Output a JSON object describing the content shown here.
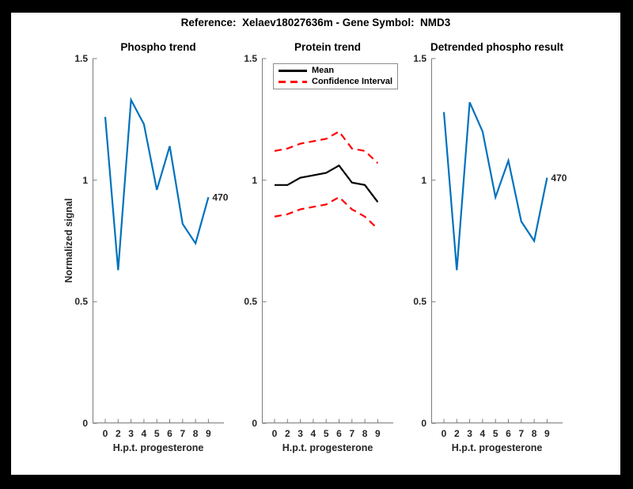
{
  "figure": {
    "title": "Reference:  Xelaev18027636m - Gene Symbol:  NMD3",
    "border_color": "#000000",
    "background": "#ffffff"
  },
  "axes": {
    "xlabel": "H.p.t. progesterone",
    "ylabel": "Normalized signal",
    "x_tick_labels": [
      "0",
      "2",
      "3",
      "4",
      "5",
      "6",
      "7",
      "8",
      "9"
    ],
    "y_ticks": [
      0,
      0.5,
      1,
      1.5
    ],
    "y_tick_labels": [
      "0",
      "0.5",
      "1",
      "1.5"
    ],
    "ylim": [
      0,
      1.5
    ],
    "axis_color": "#7b7b7b",
    "tick_label_color": "#262626",
    "grid": "off"
  },
  "chart_data": [
    {
      "type": "line",
      "title": "Phospho trend",
      "xlabel": "H.p.t. progesterone",
      "ylabel": "Normalized signal",
      "x_categories": [
        "0",
        "2",
        "3",
        "4",
        "5",
        "6",
        "7",
        "8",
        "9"
      ],
      "ylim": [
        0,
        1.5
      ],
      "series": [
        {
          "name": "phospho signal",
          "color": "#0072BD",
          "style": "solid",
          "values": [
            1.26,
            0.63,
            1.33,
            1.23,
            0.96,
            1.14,
            0.82,
            0.74,
            0.93
          ],
          "end_label": "470"
        }
      ]
    },
    {
      "type": "line",
      "title": "Protein trend",
      "xlabel": "H.p.t. progesterone",
      "x_categories": [
        "0",
        "2",
        "3",
        "4",
        "5",
        "6",
        "7",
        "8",
        "9"
      ],
      "ylim": [
        0,
        1.5
      ],
      "legend": {
        "position": "top-left",
        "items": [
          {
            "label": "Mean",
            "color": "#000000",
            "style": "solid"
          },
          {
            "label": "Confidence Interval",
            "color": "#FF0000",
            "style": "dashed"
          }
        ]
      },
      "series": [
        {
          "name": "Mean",
          "color": "#000000",
          "style": "solid",
          "values": [
            0.98,
            0.98,
            1.01,
            1.02,
            1.03,
            1.06,
            0.99,
            0.98,
            0.91
          ]
        },
        {
          "name": "Confidence Interval upper",
          "color": "#FF0000",
          "style": "dashed",
          "values": [
            1.12,
            1.13,
            1.15,
            1.16,
            1.17,
            1.2,
            1.13,
            1.12,
            1.07
          ]
        },
        {
          "name": "Confidence Interval lower",
          "color": "#FF0000",
          "style": "dashed",
          "values": [
            0.85,
            0.86,
            0.88,
            0.89,
            0.9,
            0.93,
            0.88,
            0.85,
            0.8
          ]
        }
      ]
    },
    {
      "type": "line",
      "title": "Detrended phospho result",
      "xlabel": "H.p.t. progesterone",
      "x_categories": [
        "0",
        "2",
        "3",
        "4",
        "5",
        "6",
        "7",
        "8",
        "9"
      ],
      "ylim": [
        0,
        1.5
      ],
      "series": [
        {
          "name": "detrended phospho signal",
          "color": "#0072BD",
          "style": "solid",
          "values": [
            1.28,
            0.63,
            1.32,
            1.2,
            0.93,
            1.08,
            0.83,
            0.75,
            1.01
          ],
          "end_label": "470"
        }
      ]
    }
  ]
}
